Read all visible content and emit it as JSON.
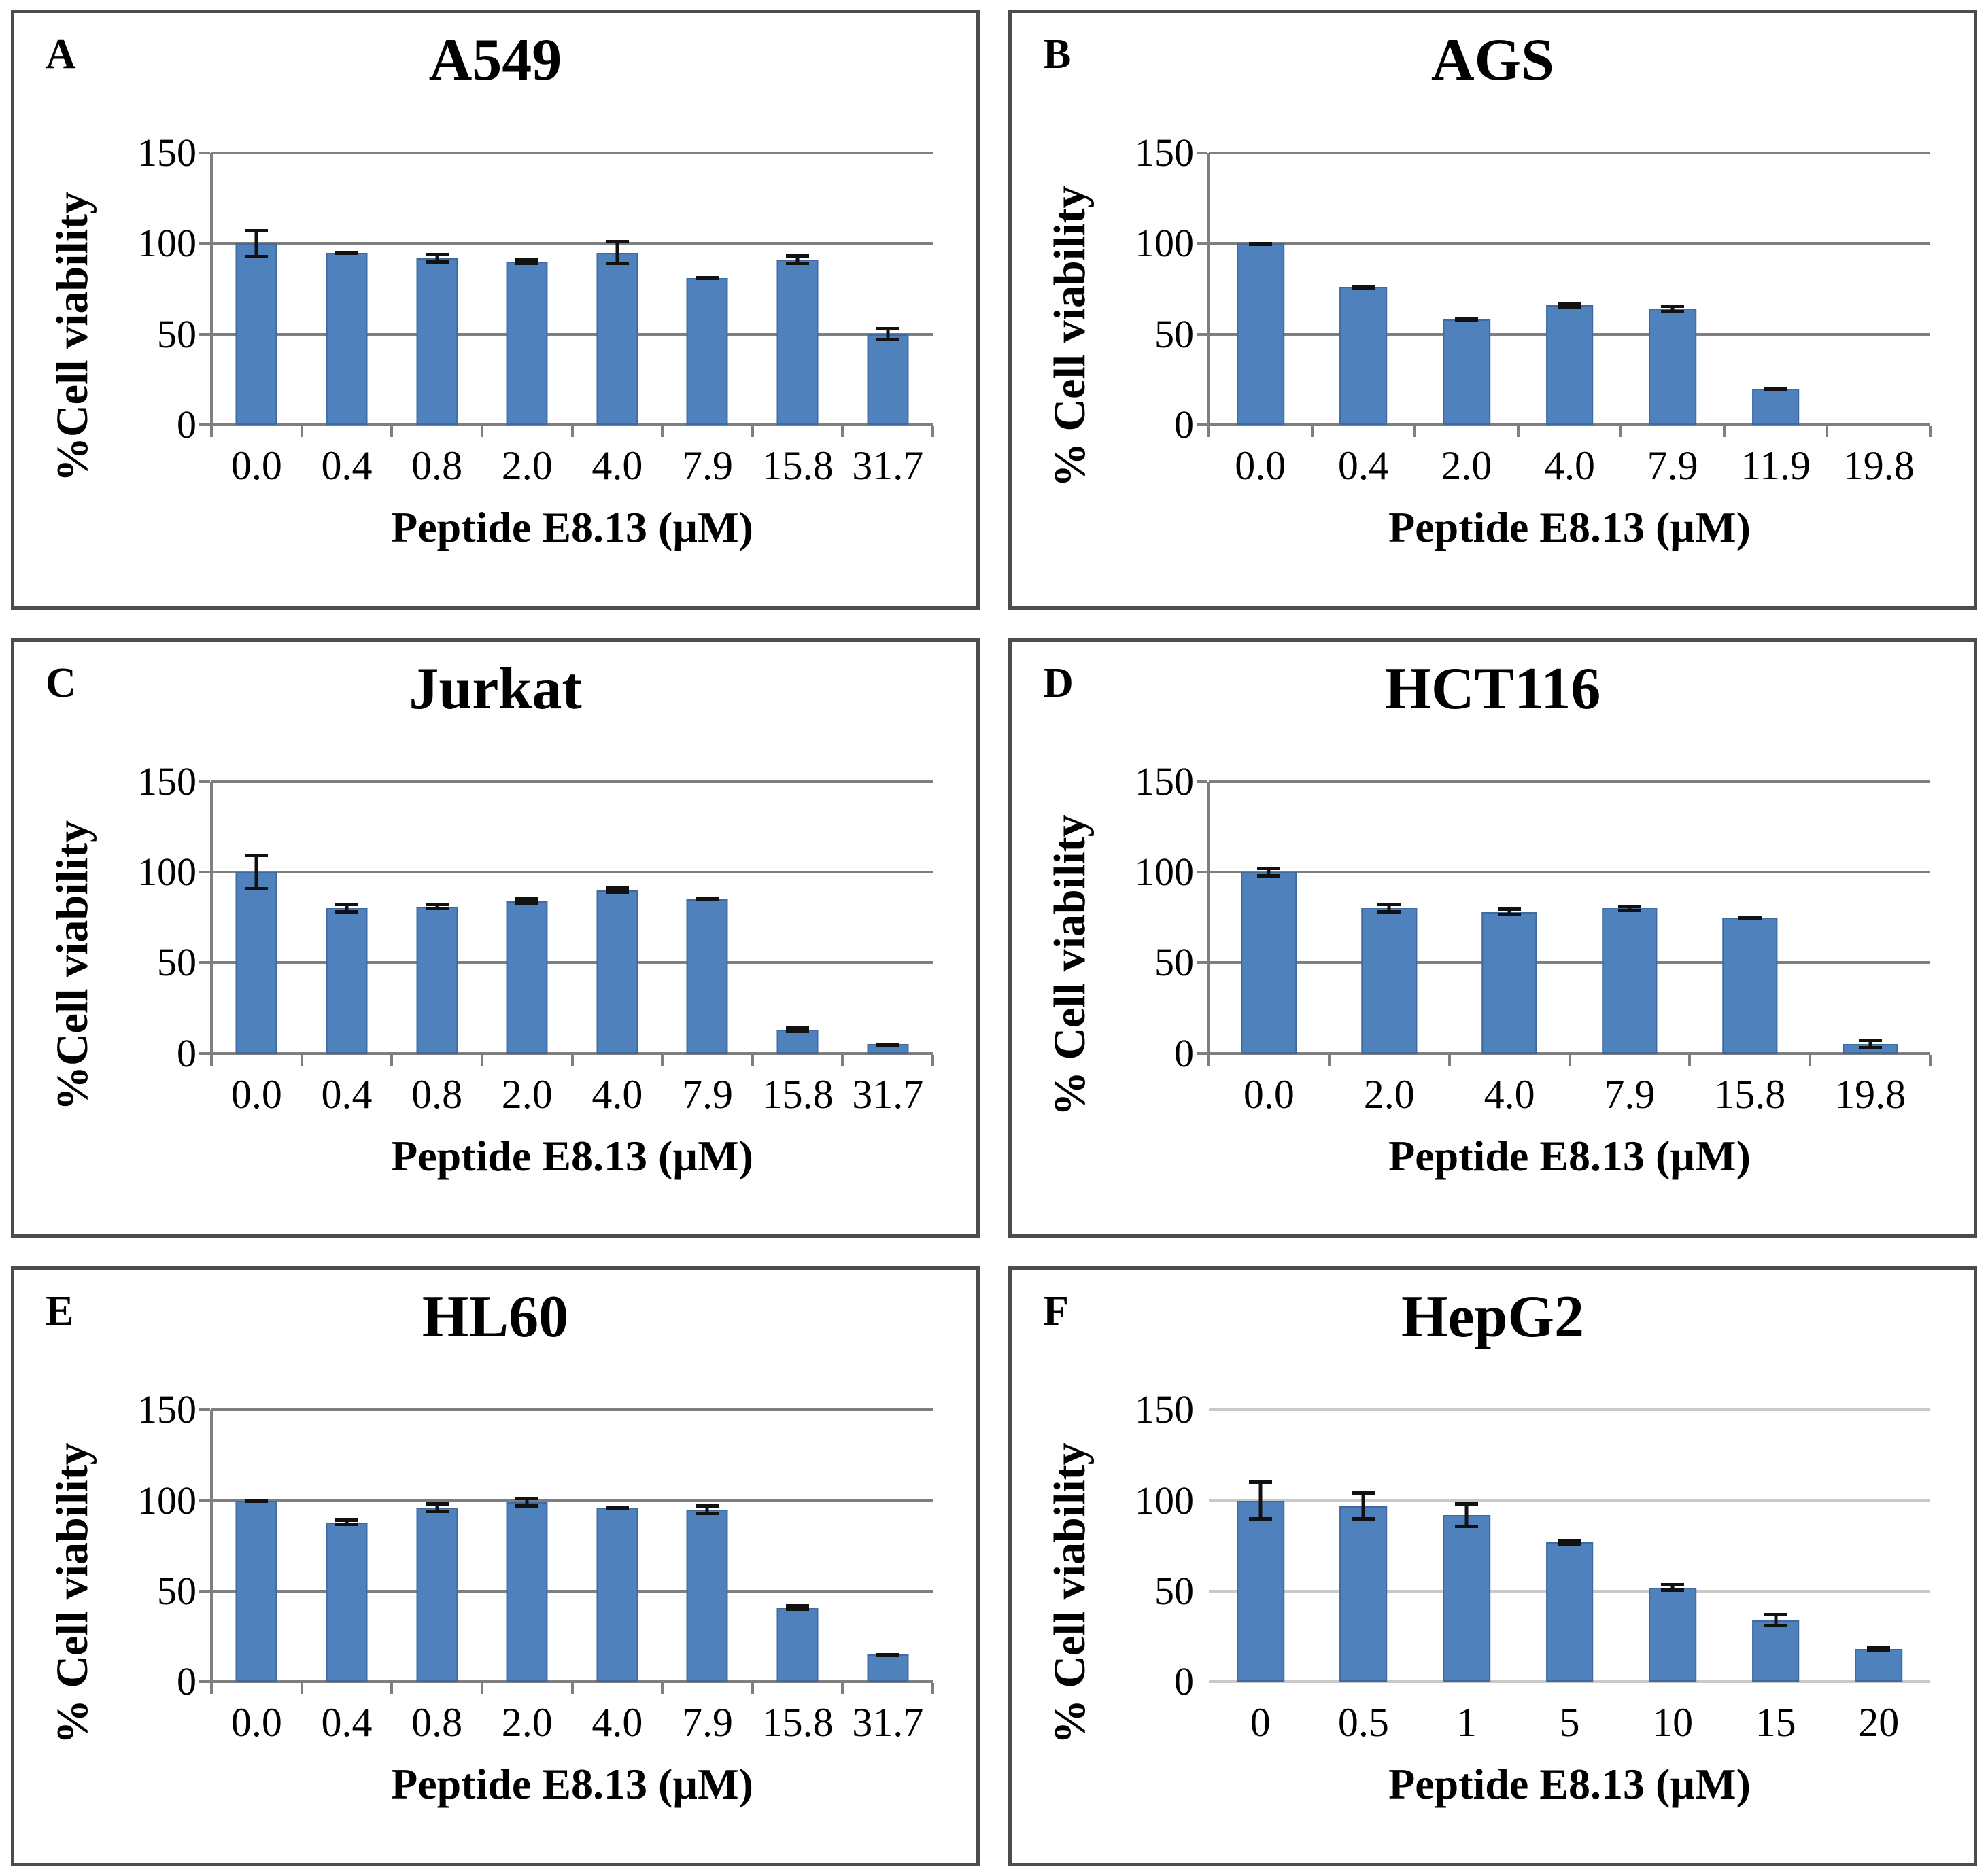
{
  "figure": {
    "description_note": "Six-panel bar chart figure of % cell viability vs Peptide E8.13 concentration",
    "colors": {
      "bar_fill": "#4f81bd",
      "bar_edge": "#3e6aa0",
      "error_bar": "#111111",
      "grid": "#7f7f7f",
      "grid_light": "#c9c9c9",
      "panel_border": "#4c4c4c",
      "text": "#000000"
    }
  },
  "chart_data": [
    {
      "type": "bar",
      "panel_letter": "A",
      "title": "A549",
      "xlabel": "Peptide E8.13 (µM)",
      "ylabel": "%Cell viability",
      "ylim": [
        0,
        150
      ],
      "yticks": [
        150,
        100,
        50,
        0
      ],
      "grid": "on",
      "legend": "none",
      "categories": [
        "0.0",
        "0.4",
        "0.8",
        "2.0",
        "4.0",
        "7.9",
        "15.8",
        "31.7"
      ],
      "values": [
        100,
        95,
        92,
        90,
        95,
        81,
        91,
        50
      ],
      "errors": [
        8,
        1,
        3,
        2,
        7,
        1,
        3,
        4
      ],
      "light_grid": false,
      "show_y_axis": true,
      "show_x_ticks": true
    },
    {
      "type": "bar",
      "panel_letter": "B",
      "title": "AGS",
      "xlabel": "Peptide E8.13 (µM)",
      "ylabel": "% Cell viability",
      "ylim": [
        0,
        150
      ],
      "yticks": [
        150,
        100,
        50,
        0
      ],
      "grid": "on",
      "legend": "none",
      "categories": [
        "0.0",
        "0.4",
        "2.0",
        "4.0",
        "7.9",
        "11.9",
        "19.8"
      ],
      "values": [
        100,
        76,
        58,
        66,
        64,
        20,
        0
      ],
      "errors": [
        1,
        1,
        1.5,
        2,
        2.5,
        1,
        0
      ],
      "light_grid": false,
      "show_y_axis": true,
      "show_x_ticks": true
    },
    {
      "type": "bar",
      "panel_letter": "C",
      "title": "Jurkat",
      "xlabel": "Peptide E8.13 (µM)",
      "ylabel": "%Cell viability",
      "ylim": [
        0,
        150
      ],
      "yticks": [
        150,
        100,
        50,
        0
      ],
      "grid": "on",
      "legend": "none",
      "categories": [
        "0.0",
        "0.4",
        "0.8",
        "2.0",
        "4.0",
        "7.9",
        "15.8",
        "31.7"
      ],
      "values": [
        100,
        80,
        81,
        84,
        90,
        85,
        13,
        5
      ],
      "errors": [
        10,
        3,
        2,
        2,
        2,
        1,
        2,
        1
      ],
      "light_grid": false,
      "show_y_axis": true,
      "show_x_ticks": true
    },
    {
      "type": "bar",
      "panel_letter": "D",
      "title": "HCT116",
      "xlabel": "Peptide E8.13 (µM)",
      "ylabel": "% Cell viability",
      "ylim": [
        0,
        150
      ],
      "yticks": [
        150,
        100,
        50,
        0
      ],
      "grid": "on",
      "legend": "none",
      "categories": [
        "0.0",
        "2.0",
        "4.0",
        "7.9",
        "15.8",
        "19.8"
      ],
      "values": [
        100,
        80,
        78,
        80,
        75,
        5
      ],
      "errors": [
        3,
        3,
        2.5,
        2,
        1,
        3
      ],
      "light_grid": false,
      "show_y_axis": true,
      "show_x_ticks": true
    },
    {
      "type": "bar",
      "panel_letter": "E",
      "title": "HL60",
      "xlabel": "Peptide E8.13 (µM)",
      "ylabel": "% Cell viability",
      "ylim": [
        0,
        150
      ],
      "yticks": [
        150,
        100,
        50,
        0
      ],
      "grid": "on",
      "legend": "none",
      "categories": [
        "0.0",
        "0.4",
        "0.8",
        "2.0",
        "4.0",
        "7.9",
        "15.8",
        "31.7"
      ],
      "values": [
        100,
        88,
        96,
        99,
        96,
        95,
        41,
        15
      ],
      "errors": [
        1,
        2,
        3,
        3,
        1,
        3,
        2,
        1
      ],
      "light_grid": false,
      "show_y_axis": true,
      "show_x_ticks": true
    },
    {
      "type": "bar",
      "panel_letter": "F",
      "title": "HepG2",
      "xlabel": "Peptide E8.13 (µM)",
      "ylabel": "% Cell viability",
      "ylim": [
        0,
        150
      ],
      "yticks": [
        150,
        100,
        50,
        0
      ],
      "grid": "on",
      "legend": "none",
      "categories": [
        "0",
        "0.5",
        "1",
        "5",
        "10",
        "15",
        "20"
      ],
      "values": [
        100,
        97,
        92,
        77,
        52,
        34,
        18
      ],
      "errors": [
        11,
        8,
        7,
        2,
        2.5,
        4,
        1.5
      ],
      "light_grid": true,
      "show_y_axis": false,
      "show_x_ticks": false
    }
  ]
}
